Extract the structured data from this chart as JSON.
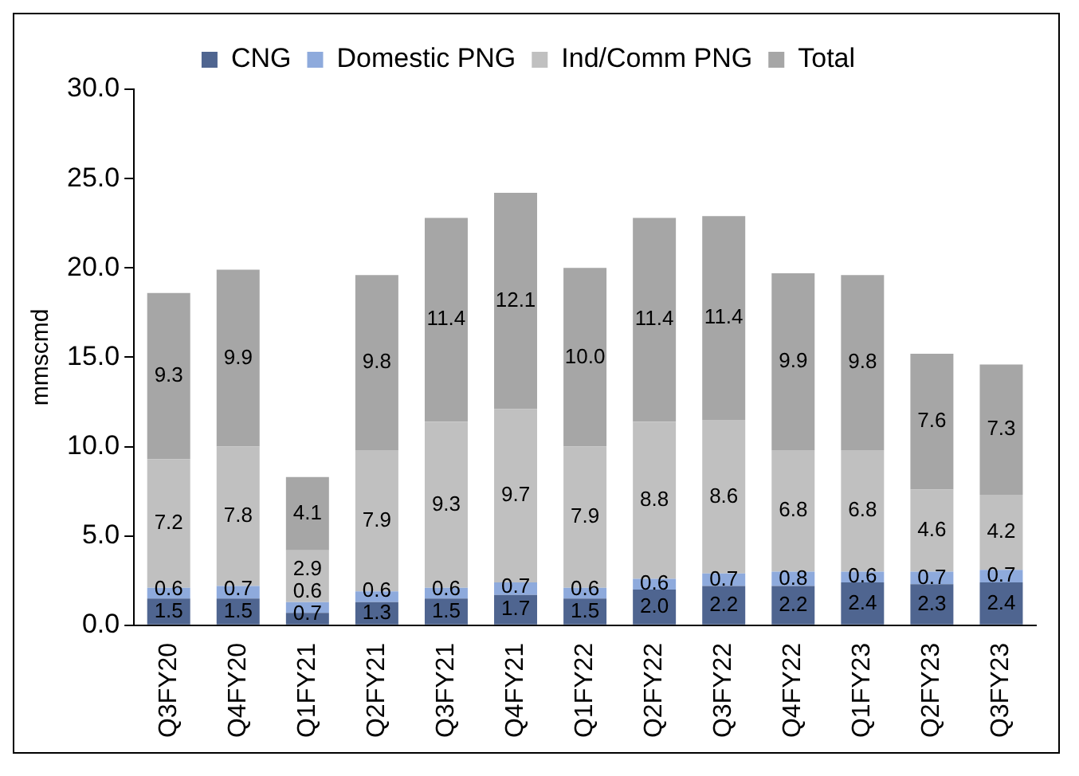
{
  "chart_data": {
    "type": "bar",
    "stacked": true,
    "ylabel": "mmscmd",
    "categories": [
      "Q3FY20",
      "Q4FY20",
      "Q1FY21",
      "Q2FY21",
      "Q3FY21",
      "Q4FY21",
      "Q1FY22",
      "Q2FY22",
      "Q3FY22",
      "Q4FY22",
      "Q1FY23",
      "Q2FY23",
      "Q3FY23"
    ],
    "series": [
      {
        "name": "CNG",
        "color": "#4f6590",
        "values": [
          1.5,
          1.5,
          0.7,
          1.3,
          1.5,
          1.7,
          1.5,
          2,
          2.2,
          2.2,
          2.4,
          2.3,
          2.4
        ],
        "value_labels": [
          "1.5",
          "1.5",
          "0.7",
          "1.3",
          "1.5",
          "1.7",
          "1.5",
          "2.0",
          "2.2",
          "2.2",
          "2.4",
          "2.3",
          "2.4"
        ]
      },
      {
        "name": "Domestic PNG",
        "color": "#8eaadc",
        "values": [
          0.6,
          0.7,
          0.6,
          0.6,
          0.6,
          0.7,
          0.6,
          0.6,
          0.7,
          0.8,
          0.6,
          0.7,
          0.7
        ],
        "value_labels": [
          "0.6",
          "0.7",
          "0.6",
          "0.6",
          "0.6",
          "0.7",
          "0.6",
          "0.6",
          "0.7",
          "0.8",
          "0.6",
          "0.7",
          "0.7"
        ]
      },
      {
        "name": "Ind/Comm PNG",
        "color": "#c0c0c0",
        "values": [
          7.2,
          7.8,
          2.9,
          7.9,
          9.3,
          9.7,
          7.9,
          8.8,
          8.6,
          6.8,
          6.8,
          4.6,
          4.2
        ],
        "value_labels": [
          "7.2",
          "7.8",
          "2.9",
          "7.9",
          "9.3",
          "9.7",
          "7.9",
          "8.8",
          "8.6",
          "6.8",
          "6.8",
          "4.6",
          "4.2"
        ]
      },
      {
        "name": "Total",
        "color": "#a6a6a6",
        "values": [
          9.3,
          9.9,
          4.1,
          9.8,
          11.4,
          12.1,
          10,
          11.4,
          11.4,
          9.9,
          9.8,
          7.6,
          7.3
        ],
        "value_labels": [
          "9.3",
          "9.9",
          "4.1",
          "9.8",
          "11.4",
          "12.1",
          "10.0",
          "11.4",
          "11.4",
          "9.9",
          "9.8",
          "7.6",
          "7.3"
        ]
      }
    ],
    "ylim": [
      0,
      30
    ],
    "yticks": [
      {
        "value": 0,
        "label": "0.0"
      },
      {
        "value": 5,
        "label": "5.0"
      },
      {
        "value": 10,
        "label": "10.0"
      },
      {
        "value": 15,
        "label": "15.0"
      },
      {
        "value": 20,
        "label": "20.0"
      },
      {
        "value": 25,
        "label": "25.0"
      },
      {
        "value": 30,
        "label": "30.0"
      }
    ],
    "grid": false,
    "legend": "top"
  }
}
